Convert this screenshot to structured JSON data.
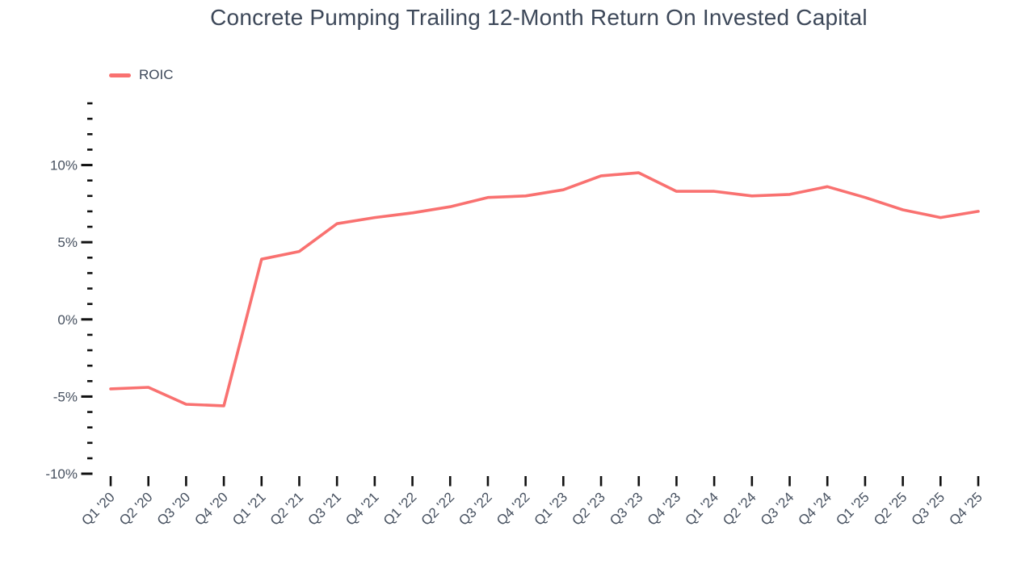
{
  "title": "Concrete Pumping Trailing 12-Month Return On Invested Capital",
  "legend": {
    "label": "ROIC"
  },
  "colors": {
    "line": "#f97170",
    "text": "#3d4859",
    "axis_label": "#46505f",
    "tick": "#111111",
    "background": "#ffffff"
  },
  "chart_data": {
    "type": "line",
    "title": "Concrete Pumping Trailing 12-Month Return On Invested Capital",
    "xlabel": "",
    "ylabel": "",
    "grid": false,
    "legend_position": "top-left",
    "ylim": [
      -10,
      14
    ],
    "y_minor_step": 1,
    "y_major_ticks": [
      -10,
      -5,
      0,
      5,
      10
    ],
    "y_tick_labels": [
      "-10%",
      "-5%",
      "0%",
      "5%",
      "10%"
    ],
    "categories": [
      "Q1 '20",
      "Q2 '20",
      "Q3 '20",
      "Q4 '20",
      "Q1 '21",
      "Q2 '21",
      "Q3 '21",
      "Q4 '21",
      "Q1 '22",
      "Q2 '22",
      "Q3 '22",
      "Q4 '22",
      "Q1 '23",
      "Q2 '23",
      "Q3 '23",
      "Q4 '23",
      "Q1 '24",
      "Q2 '24",
      "Q3 '24",
      "Q4 '24",
      "Q1 '25",
      "Q2 '25",
      "Q3 '25",
      "Q4 '25"
    ],
    "series": [
      {
        "name": "ROIC",
        "color": "#f97170",
        "values": [
          -4.5,
          -4.4,
          -5.5,
          -5.6,
          3.9,
          4.4,
          6.2,
          6.6,
          6.9,
          7.3,
          7.9,
          8.0,
          8.4,
          9.3,
          9.5,
          8.3,
          8.3,
          8.0,
          8.1,
          8.6,
          7.9,
          7.1,
          6.6,
          7.0
        ]
      }
    ]
  }
}
